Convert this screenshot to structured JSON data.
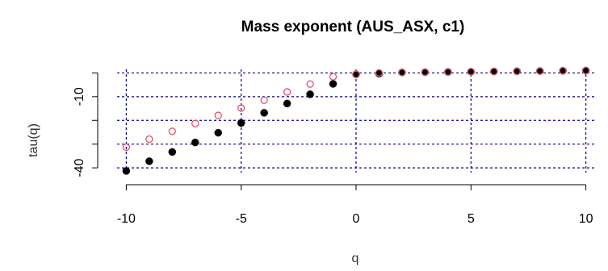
{
  "chart_data": {
    "type": "scatter",
    "title": "Mass exponent (AUS_ASX, c1)",
    "xlabel": "q",
    "ylabel": "tau(q)",
    "xlim": [
      -10.4,
      10.4
    ],
    "ylim": [
      -42.0,
      1.5
    ],
    "x_ticks": [
      -10,
      -5,
      0,
      5,
      10
    ],
    "y_ticks": [
      -40,
      -10
    ],
    "y_grid_lines": [
      -40,
      -30,
      -20,
      -10,
      0
    ],
    "x_grid_lines": [
      -10,
      -5,
      0,
      5,
      10
    ],
    "grid": true,
    "series": [
      {
        "marker": "filled-circle",
        "color": "#000000",
        "x": [
          -10,
          -9,
          -8,
          -7,
          -6,
          -5,
          -4,
          -3,
          -2,
          -1,
          0,
          1,
          2,
          3,
          4,
          5,
          6,
          7,
          8,
          9,
          10
        ],
        "y": [
          -41.3,
          -37.2,
          -33.3,
          -29.3,
          -25.2,
          -21.1,
          -16.8,
          -12.9,
          -9.0,
          -4.6,
          -0.6,
          -0.3,
          0.2,
          0.3,
          0.4,
          0.5,
          0.6,
          0.7,
          0.8,
          0.9,
          1.0
        ]
      },
      {
        "marker": "open-circle",
        "color": "#df536b",
        "x": [
          -10,
          -9,
          -8,
          -7,
          -6,
          -5,
          -4,
          -3,
          -2,
          -1,
          0,
          1,
          2,
          3,
          4,
          5,
          6,
          7,
          8,
          9,
          10
        ],
        "y": [
          -31.3,
          -27.9,
          -24.6,
          -21.3,
          -17.9,
          -14.8,
          -11.5,
          -8.0,
          -4.7,
          -1.6,
          -0.6,
          0.0,
          0.2,
          0.3,
          0.4,
          0.5,
          0.6,
          0.7,
          0.8,
          0.9,
          1.0
        ]
      }
    ]
  }
}
